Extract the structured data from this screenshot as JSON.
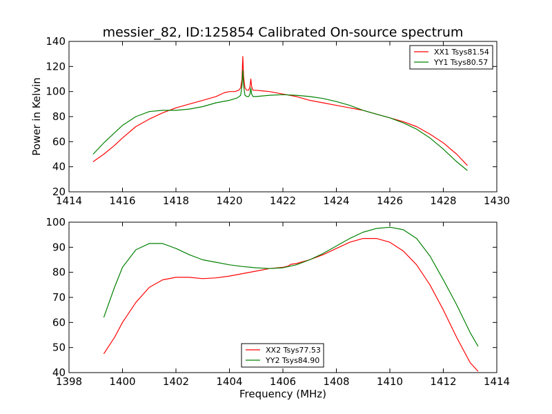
{
  "figure": {
    "title": "messier_82, ID:125854 Calibrated On-source spectrum",
    "xlabel": "Frequency (MHz)",
    "ylabel": "Power in Kelvin"
  },
  "chart_data": [
    {
      "type": "line",
      "title": "messier_82, ID:125854 Calibrated On-source spectrum",
      "xlabel": "",
      "ylabel": "Power in Kelvin",
      "xlim": [
        1414,
        1430
      ],
      "ylim": [
        20,
        140
      ],
      "xticks": [
        1414,
        1416,
        1418,
        1420,
        1422,
        1424,
        1426,
        1428,
        1430
      ],
      "yticks": [
        20,
        40,
        60,
        80,
        100,
        120,
        140
      ],
      "grid": false,
      "legend": "top-right",
      "series": [
        {
          "name": "XX1 Tsys81.54",
          "color": "#ff0000",
          "x": [
            1414.9,
            1415.3,
            1415.7,
            1416.0,
            1416.5,
            1417.0,
            1417.5,
            1418.0,
            1418.5,
            1419.0,
            1419.5,
            1419.8,
            1420.0,
            1420.2,
            1420.35,
            1420.42,
            1420.47,
            1420.5,
            1420.53,
            1420.58,
            1420.65,
            1420.72,
            1420.77,
            1420.8,
            1420.83,
            1420.88,
            1421.0,
            1421.5,
            1422.0,
            1422.5,
            1423.0,
            1423.5,
            1424.0,
            1424.5,
            1425.0,
            1425.5,
            1426.0,
            1426.5,
            1427.0,
            1427.5,
            1428.0,
            1428.5,
            1428.9
          ],
          "y": [
            44,
            50,
            57,
            63,
            72,
            78,
            83,
            87,
            90,
            93,
            96,
            99,
            100,
            100,
            101,
            103,
            110,
            128,
            112,
            103,
            101,
            101,
            104,
            110,
            104,
            101,
            101,
            100,
            98,
            96,
            93,
            91,
            89,
            87,
            85,
            82,
            79,
            76,
            72,
            66,
            59,
            50,
            41
          ]
        },
        {
          "name": "YY1 Tsys80.57",
          "color": "#008000",
          "x": [
            1414.9,
            1415.3,
            1415.7,
            1416.0,
            1416.5,
            1417.0,
            1417.5,
            1418.0,
            1418.5,
            1419.0,
            1419.5,
            1420.0,
            1420.3,
            1420.42,
            1420.47,
            1420.5,
            1420.53,
            1420.58,
            1420.65,
            1420.72,
            1420.77,
            1420.8,
            1420.83,
            1420.88,
            1421.0,
            1421.5,
            1422.0,
            1422.5,
            1423.0,
            1423.5,
            1424.0,
            1424.5,
            1425.0,
            1425.5,
            1426.0,
            1426.5,
            1427.0,
            1427.5,
            1428.0,
            1428.5,
            1428.9
          ],
          "y": [
            50,
            59,
            67,
            73,
            80,
            84,
            85,
            85,
            86,
            88,
            91,
            93,
            95,
            97,
            105,
            117,
            105,
            97,
            96,
            96,
            98,
            103,
            98,
            96,
            96,
            97,
            97.5,
            97,
            96,
            94.5,
            92,
            89,
            85,
            82,
            79,
            75,
            70,
            63,
            54,
            44,
            37
          ]
        }
      ]
    },
    {
      "type": "line",
      "title": "",
      "xlabel": "Frequency (MHz)",
      "ylabel": "",
      "xlim": [
        1398,
        1414
      ],
      "ylim": [
        40,
        100
      ],
      "xticks": [
        1398,
        1400,
        1402,
        1404,
        1406,
        1408,
        1410,
        1412,
        1414
      ],
      "yticks": [
        40,
        50,
        60,
        70,
        80,
        90,
        100
      ],
      "grid": false,
      "legend": "bottom-center",
      "series": [
        {
          "name": "XX2 Tsys77.53",
          "color": "#ff0000",
          "x": [
            1399.3,
            1399.7,
            1400.0,
            1400.5,
            1401.0,
            1401.5,
            1402.0,
            1402.5,
            1403.0,
            1403.5,
            1404.0,
            1404.5,
            1405.0,
            1405.5,
            1406.0,
            1406.2,
            1406.3,
            1406.5,
            1407.0,
            1407.5,
            1408.0,
            1408.5,
            1409.0,
            1409.5,
            1410.0,
            1410.5,
            1411.0,
            1411.5,
            1412.0,
            1412.5,
            1413.0,
            1413.3
          ],
          "y": [
            47.5,
            54,
            60,
            68,
            74,
            77,
            78,
            78,
            77.5,
            77.8,
            78.5,
            79.5,
            80.5,
            81.5,
            82,
            82.5,
            83.2,
            83.5,
            85,
            87,
            89.5,
            92,
            93.5,
            93.5,
            92,
            88.5,
            83,
            75,
            65,
            54,
            44,
            40.5
          ]
        },
        {
          "name": "YY2 Tsys84.90",
          "color": "#008000",
          "x": [
            1399.3,
            1399.7,
            1400.0,
            1400.5,
            1401.0,
            1401.5,
            1402.0,
            1402.5,
            1403.0,
            1403.5,
            1404.0,
            1404.5,
            1405.0,
            1405.5,
            1406.0,
            1406.5,
            1407.0,
            1407.5,
            1408.0,
            1408.5,
            1409.0,
            1409.5,
            1410.0,
            1410.5,
            1411.0,
            1411.5,
            1412.0,
            1412.5,
            1413.0,
            1413.3
          ],
          "y": [
            62,
            74,
            82,
            89,
            91.5,
            91.5,
            89.5,
            87,
            85,
            84,
            83,
            82.3,
            81.8,
            81.5,
            81.8,
            83,
            85,
            87.5,
            90.5,
            93.5,
            96,
            97.5,
            98,
            97,
            93.5,
            86.5,
            77,
            67,
            56,
            50.5
          ]
        }
      ]
    }
  ]
}
